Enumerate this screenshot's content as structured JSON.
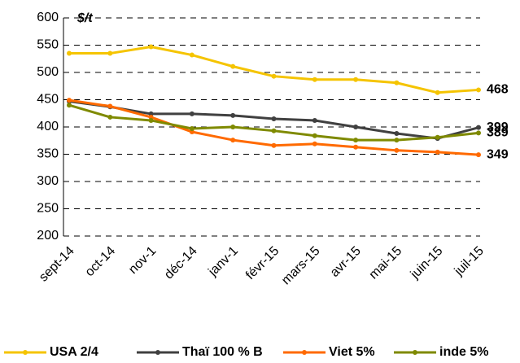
{
  "chart_data": {
    "type": "line",
    "unit_label": "$/t",
    "categories": [
      "sept-14",
      "oct-14",
      "nov-1",
      "déc-14",
      "janv-1",
      "févr-15",
      "mars-15",
      "avr-15",
      "mai-15",
      "juin-15",
      "juil-15"
    ],
    "series": [
      {
        "name": "USA 2/4",
        "color": "#f5c400",
        "label_color": "#f5c400",
        "values": [
          535,
          535,
          547,
          532,
          511,
          493,
          487,
          487,
          481,
          463,
          468
        ]
      },
      {
        "name": "Thaï 100 % B",
        "color": "#404040",
        "label_color": "#000000",
        "values": [
          447,
          437,
          424,
          424,
          421,
          415,
          412,
          400,
          388,
          379,
          399
        ]
      },
      {
        "name": "Viet 5%",
        "color": "#ff6a00",
        "label_color": "#ff0000",
        "values": [
          449,
          438,
          418,
          391,
          376,
          366,
          369,
          363,
          357,
          354,
          349
        ]
      },
      {
        "name": "inde 5%",
        "color": "#7f8a00",
        "label_color": "#7f8a00",
        "values": [
          440,
          418,
          412,
          397,
          400,
          393,
          384,
          376,
          376,
          381,
          389
        ]
      }
    ],
    "ylim": [
      200,
      600
    ],
    "yticks": [
      200,
      250,
      300,
      350,
      400,
      450,
      500,
      550,
      600
    ],
    "grid": true,
    "legend": "bottom"
  }
}
